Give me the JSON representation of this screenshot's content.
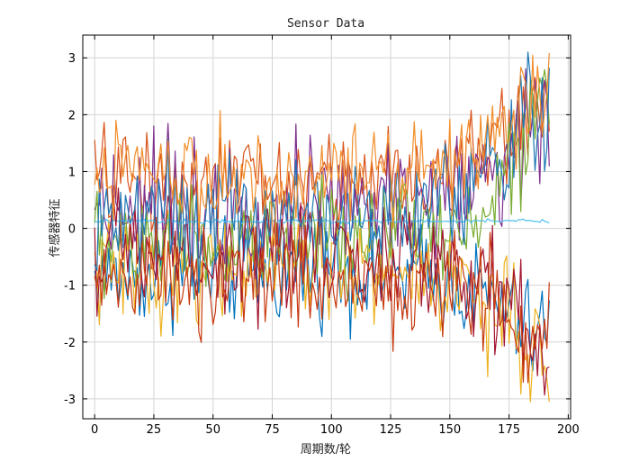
{
  "chart_data": {
    "type": "line",
    "title": "Sensor Data",
    "xlabel": "周期数/轮",
    "ylabel": "传感器特征",
    "xlim": [
      -5,
      201
    ],
    "ylim": [
      -3.35,
      3.4
    ],
    "x_ticks": [
      0,
      25,
      50,
      75,
      100,
      125,
      150,
      175,
      200
    ],
    "y_ticks": [
      -3,
      -2,
      -1,
      0,
      1,
      2,
      3
    ],
    "grid": true,
    "x_range": [
      0,
      192
    ],
    "series_colors": [
      "#1f77b4",
      "#d95319",
      "#edb120",
      "#7e2f8e",
      "#77ac30",
      "#4dbeee",
      "#a2142f",
      "#0072bd",
      "#f28e2b",
      "#c7390f"
    ],
    "series": [
      {
        "color": "#0072bd",
        "keypoints": [
          [
            0,
            -0.9
          ],
          [
            100,
            -0.7
          ],
          [
            150,
            -0.9
          ],
          [
            170,
            -1.3
          ],
          [
            185,
            -1.9
          ],
          [
            192,
            -1.6
          ]
        ],
        "amp": 0.45
      },
      {
        "color": "#d95319",
        "keypoints": [
          [
            0,
            0.9
          ],
          [
            100,
            0.8
          ],
          [
            150,
            1.0
          ],
          [
            170,
            1.5
          ],
          [
            185,
            2.2
          ],
          [
            192,
            2.3
          ]
        ],
        "amp": 0.45
      },
      {
        "color": "#edb120",
        "keypoints": [
          [
            0,
            -0.7
          ],
          [
            100,
            -0.6
          ],
          [
            150,
            -0.9
          ],
          [
            175,
            -1.6
          ],
          [
            185,
            -2.5
          ],
          [
            192,
            -2.4
          ]
        ],
        "amp": 0.5
      },
      {
        "color": "#7e2f8e",
        "keypoints": [
          [
            0,
            0.5
          ],
          [
            100,
            0.4
          ],
          [
            150,
            0.6
          ],
          [
            175,
            1.3
          ],
          [
            185,
            1.9
          ],
          [
            192,
            1.9
          ]
        ],
        "amp": 0.55
      },
      {
        "color": "#77ac30",
        "keypoints": [
          [
            0,
            -0.3
          ],
          [
            100,
            -0.2
          ],
          [
            150,
            0.0
          ],
          [
            175,
            0.9
          ],
          [
            185,
            2.3
          ],
          [
            192,
            2.6
          ]
        ],
        "amp": 0.5
      },
      {
        "color": "#4dbeee",
        "keypoints": [
          [
            0,
            0.12
          ],
          [
            190,
            0.13
          ]
        ],
        "amp": 0.02
      },
      {
        "color": "#a2142f",
        "keypoints": [
          [
            0,
            -0.5
          ],
          [
            100,
            -0.4
          ],
          [
            150,
            -0.7
          ],
          [
            175,
            -1.4
          ],
          [
            185,
            -2.2
          ],
          [
            192,
            -2.6
          ]
        ],
        "amp": 0.5
      },
      {
        "color": "#1f77b4",
        "keypoints": [
          [
            0,
            0.3
          ],
          [
            100,
            0.2
          ],
          [
            150,
            0.5
          ],
          [
            175,
            1.2
          ],
          [
            185,
            2.1
          ],
          [
            192,
            1.7
          ]
        ],
        "amp": 0.5
      },
      {
        "color": "#f28e2b",
        "keypoints": [
          [
            0,
            1.1
          ],
          [
            100,
            0.9
          ],
          [
            150,
            1.2
          ],
          [
            175,
            1.8
          ],
          [
            185,
            2.4
          ],
          [
            192,
            2.1
          ]
        ],
        "amp": 0.45
      },
      {
        "color": "#c7390f",
        "keypoints": [
          [
            0,
            -1.0
          ],
          [
            100,
            -0.9
          ],
          [
            150,
            -1.0
          ],
          [
            175,
            -1.5
          ],
          [
            185,
            -2.3
          ],
          [
            192,
            -1.9
          ]
        ],
        "amp": 0.45
      }
    ]
  }
}
